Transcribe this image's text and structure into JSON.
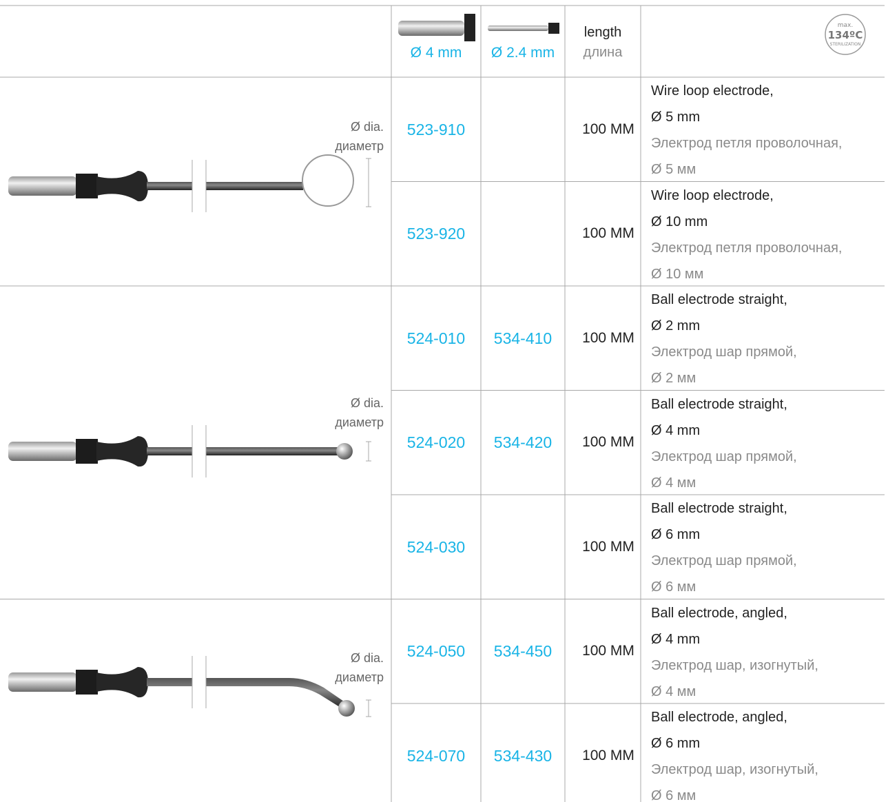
{
  "header": {
    "col_4mm": "Ø 4 mm",
    "col_2_4mm": "Ø 2.4 mm",
    "length_en": "length",
    "length_ru": "длина",
    "badge": {
      "top": "max.",
      "temp": "134ºC",
      "bottom": "STERILIZATION"
    }
  },
  "groups": [
    {
      "dia_en": "Ø dia.",
      "dia_ru": "диаметр",
      "rows": [
        {
          "code_4mm": "523-910",
          "length": "100 MM",
          "en": [
            "Wire loop electrode,",
            "Ø 5 mm"
          ],
          "ru": [
            "Электрод петля проволочная,",
            "Ø 5 мм"
          ]
        },
        {
          "code_4mm": "523-920",
          "length": "100 MM",
          "en": [
            "Wire loop electrode,",
            "Ø 10 mm"
          ],
          "ru": [
            "Электрод петля проволочная,",
            "Ø 10 мм"
          ]
        }
      ]
    },
    {
      "dia_en": "Ø dia.",
      "dia_ru": "диаметр",
      "rows": [
        {
          "code_4mm": "524-010",
          "code_2_4mm": "534-410",
          "length": "100 MM",
          "en": [
            "Ball electrode straight,",
            "Ø 2 mm"
          ],
          "ru": [
            "Электрод шар прямой,",
            "Ø 2 мм"
          ]
        },
        {
          "code_4mm": "524-020",
          "code_2_4mm": "534-420",
          "length": "100 MM",
          "en": [
            "Ball electrode straight,",
            "Ø 4 mm"
          ],
          "ru": [
            "Электрод шар прямой,",
            "Ø 4 мм"
          ]
        },
        {
          "code_4mm": "524-030",
          "length": "100 MM",
          "en": [
            "Ball electrode straight,",
            "Ø 6 mm"
          ],
          "ru": [
            "Электрод шар прямой,",
            "Ø 6 мм"
          ]
        }
      ]
    },
    {
      "dia_en": "Ø dia.",
      "dia_ru": "диаметр",
      "rows": [
        {
          "code_4mm": "524-050",
          "code_2_4mm": "534-450",
          "length": "100 MM",
          "en": [
            "Ball electrode, angled,",
            "Ø 4 mm"
          ],
          "ru": [
            "Электрод шар, изогнутый,",
            "Ø 4 мм"
          ]
        },
        {
          "code_4mm": "524-070",
          "code_2_4mm": "534-430",
          "length": "100 MM",
          "en": [
            "Ball electrode, angled,",
            "Ø 6 mm"
          ],
          "ru": [
            "Электрод шар, изогнутый,",
            "Ø 6 мм"
          ]
        }
      ]
    }
  ]
}
